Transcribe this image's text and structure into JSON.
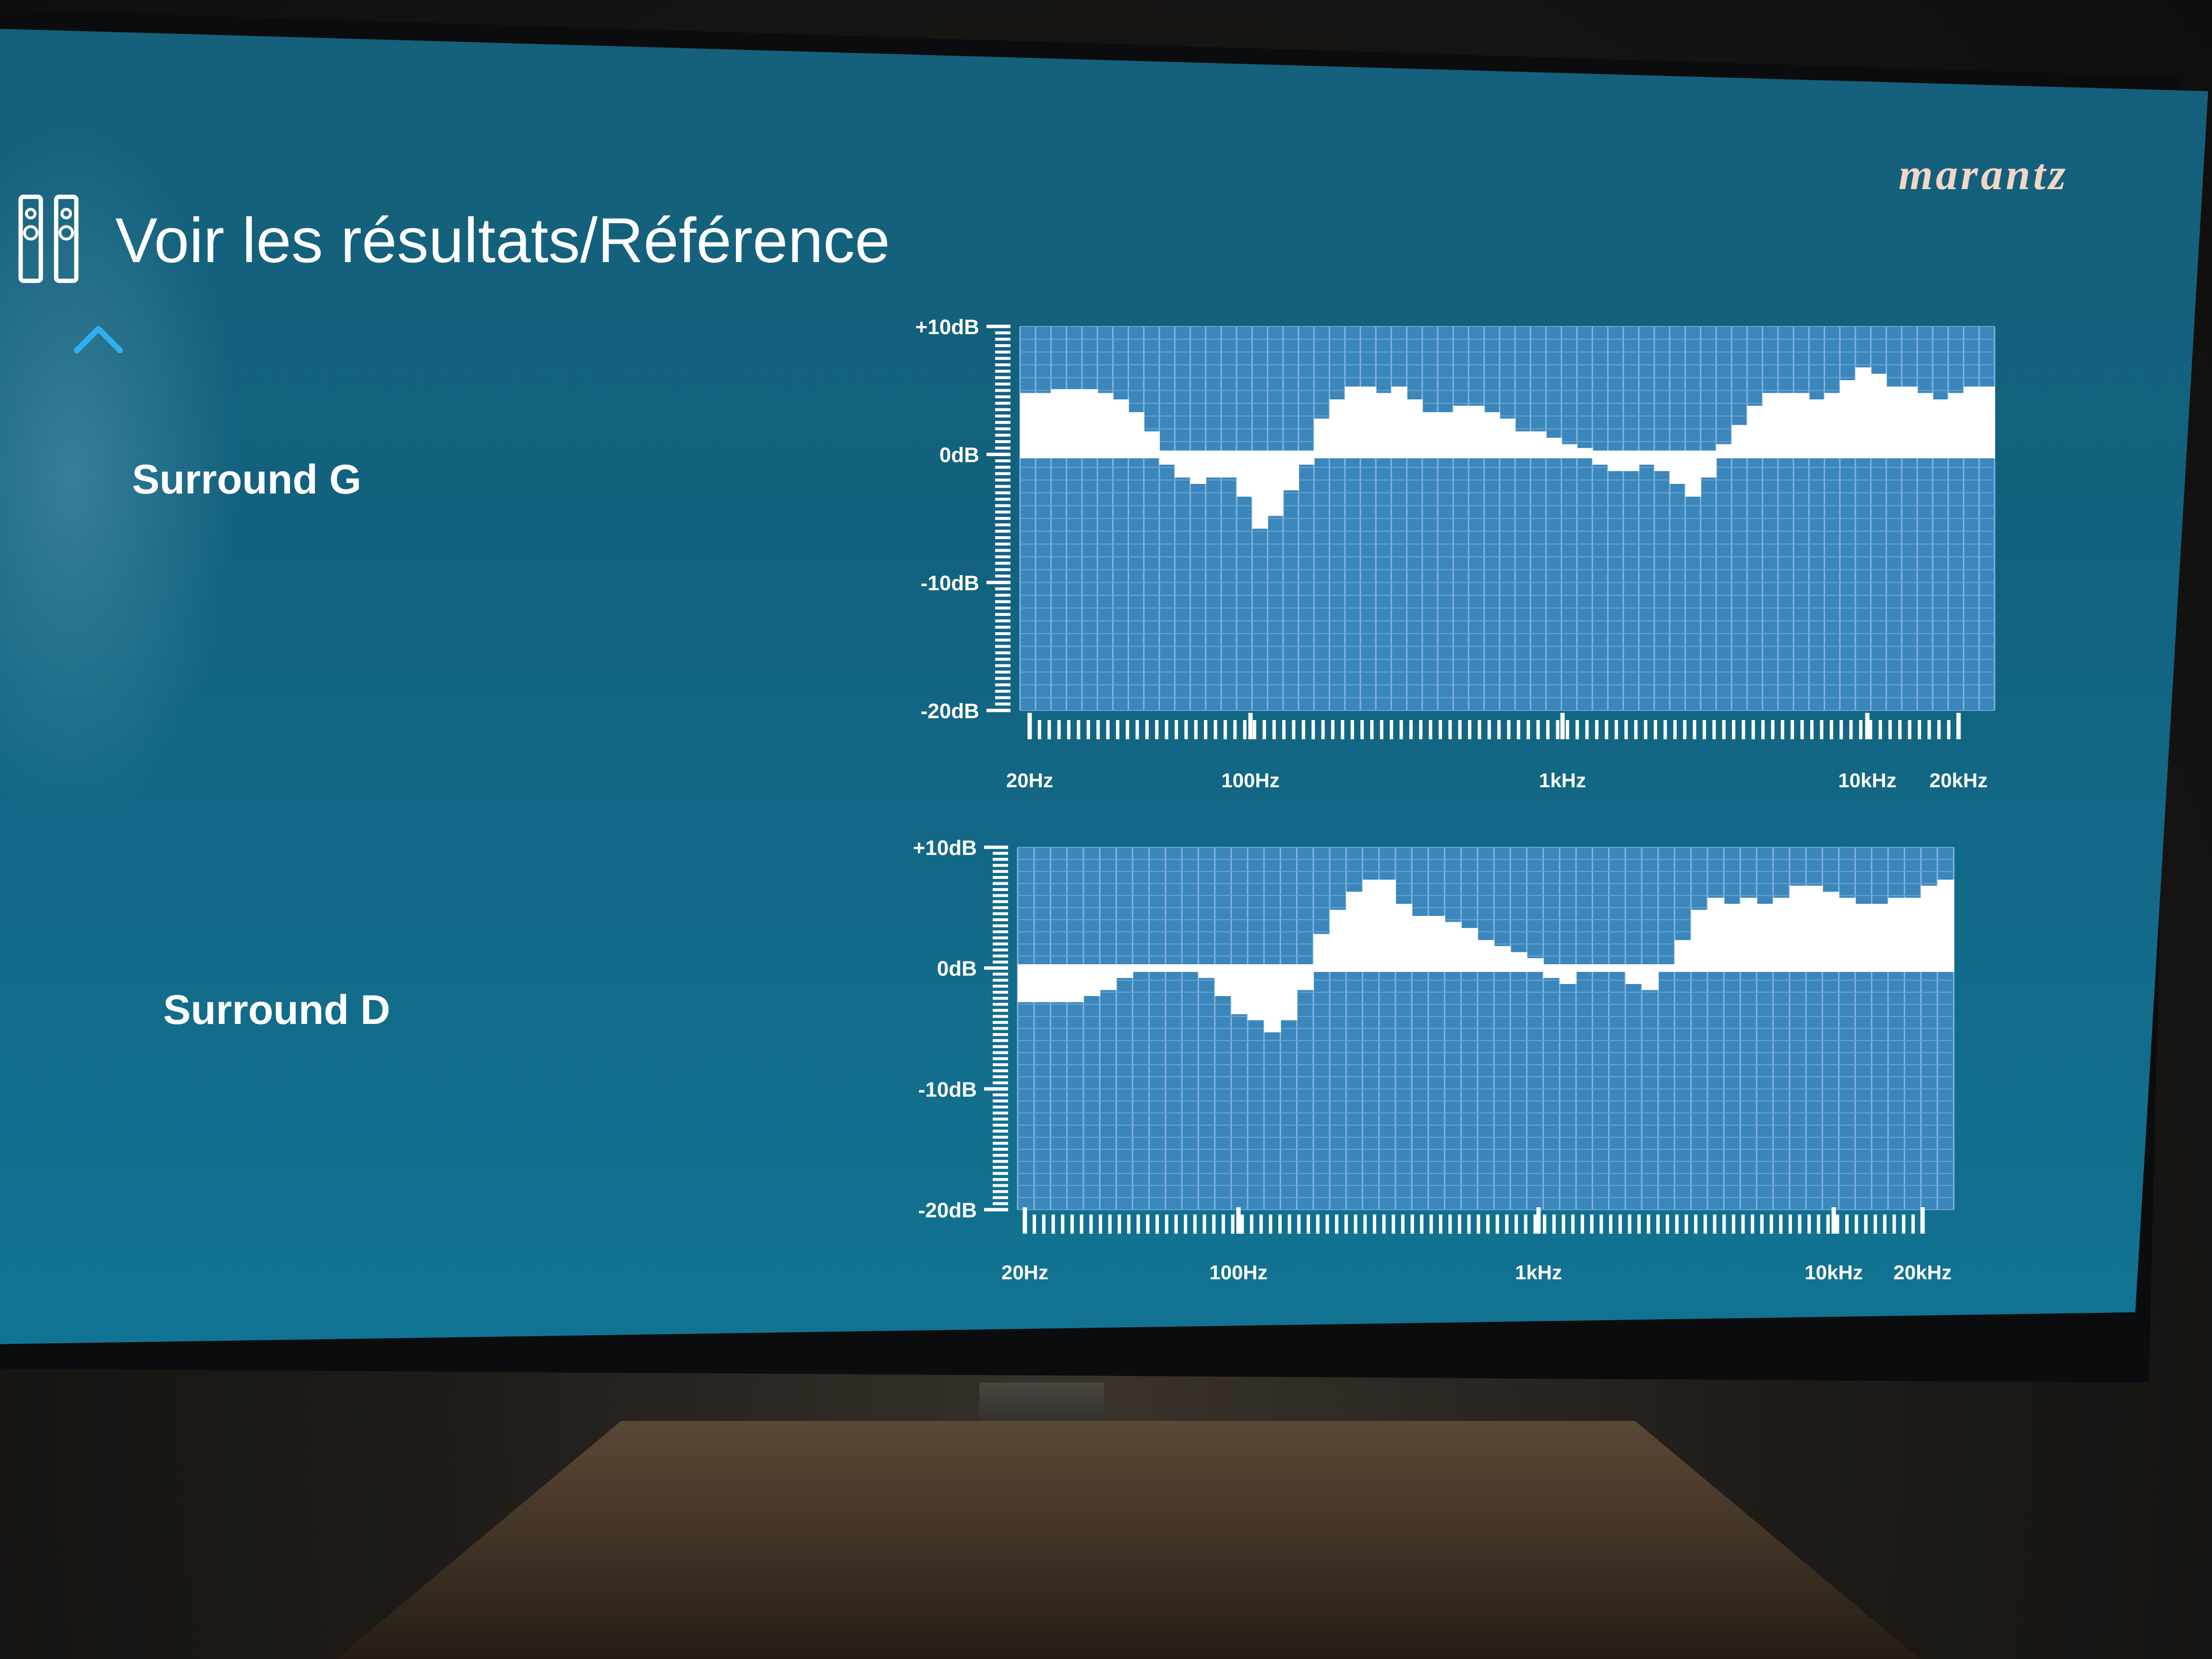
{
  "header": {
    "title": "Voir les résultats/Référence",
    "brand": "marantz"
  },
  "colors": {
    "screen_bg": "#12627f",
    "grid_blue": "#3b86ba",
    "grid_line": "#75aede",
    "bar_white": "#ffffff"
  },
  "icons": {
    "speakers": "speakers-icon",
    "scroll_up": "chevron-up-icon"
  },
  "speakers": [
    {
      "label": "Surround G"
    },
    {
      "label": "Surround D"
    }
  ],
  "chart_data": [
    {
      "type": "bar",
      "series": [
        {
          "name": "Surround G",
          "values": [
            4.5,
            4.5,
            4.8,
            4.8,
            4.8,
            4.5,
            4.0,
            3.0,
            1.5,
            -0.5,
            -1.5,
            -2.0,
            -1.5,
            -1.5,
            -3.0,
            -5.5,
            -4.5,
            -2.5,
            -0.5,
            2.5,
            4.0,
            5.0,
            5.0,
            4.5,
            5.0,
            4.0,
            3.0,
            3.0,
            3.5,
            3.5,
            3.0,
            2.5,
            1.5,
            1.5,
            1.0,
            0.5,
            0.2,
            -0.5,
            -1.0,
            -1.0,
            -0.5,
            -1.0,
            -2.0,
            -3.0,
            -1.5,
            0.5,
            2.0,
            3.5,
            4.5,
            4.5,
            4.5,
            4.0,
            4.5,
            5.5,
            6.5,
            6.0,
            5.0,
            5.0,
            4.5,
            4.0,
            4.5,
            5.0,
            5.0
          ]
        }
      ],
      "x_ticks": [
        "20Hz",
        "100Hz",
        "1kHz",
        "10kHz",
        "20kHz"
      ],
      "y_ticks": [
        "+10dB",
        "0dB",
        "-10dB",
        "-20dB"
      ],
      "xlim": [
        "20Hz",
        "20kHz"
      ],
      "ylim": [
        -20,
        10
      ],
      "x_scale": "log",
      "grid": true
    },
    {
      "type": "bar",
      "series": [
        {
          "name": "Surround D",
          "values": [
            -2.5,
            -2.5,
            -2.5,
            -2.5,
            -2.0,
            -1.5,
            -0.5,
            0.0,
            0.0,
            0.0,
            0.0,
            -0.5,
            -2.0,
            -3.5,
            -4.0,
            -5.0,
            -4.0,
            -1.5,
            2.5,
            4.5,
            6.0,
            7.0,
            7.0,
            5.0,
            4.0,
            4.0,
            3.5,
            3.0,
            2.0,
            1.5,
            1.0,
            0.5,
            -0.5,
            -1.0,
            0.0,
            0.0,
            0.0,
            -1.0,
            -1.5,
            0.0,
            2.0,
            4.5,
            5.5,
            5.0,
            5.5,
            5.0,
            5.5,
            6.5,
            6.5,
            6.0,
            5.5,
            5.0,
            5.0,
            5.5,
            5.5,
            6.5,
            7.0
          ]
        }
      ],
      "x_ticks": [
        "20Hz",
        "100Hz",
        "1kHz",
        "10kHz",
        "20kHz"
      ],
      "y_ticks": [
        "+10dB",
        "0dB",
        "-10dB",
        "-20dB"
      ],
      "xlim": [
        "20Hz",
        "20kHz"
      ],
      "ylim": [
        -20,
        10
      ],
      "x_scale": "log",
      "grid": true
    }
  ]
}
